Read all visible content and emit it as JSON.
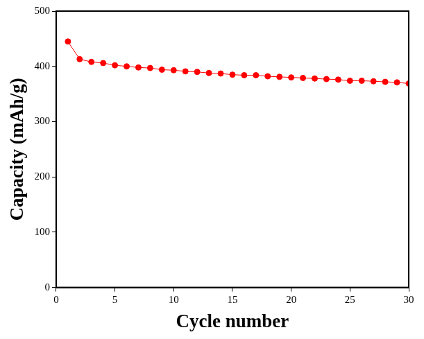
{
  "chart_data": {
    "type": "line",
    "x_label": "Cycle number",
    "y_label": "Capacity (mAh/g)",
    "x": [
      1,
      2,
      3,
      4,
      5,
      6,
      7,
      8,
      9,
      10,
      11,
      12,
      13,
      14,
      15,
      16,
      17,
      18,
      19,
      20,
      21,
      22,
      23,
      24,
      25,
      26,
      27,
      28,
      29,
      30
    ],
    "values": [
      445,
      413,
      408,
      406,
      402,
      400,
      398,
      397,
      394,
      393,
      391,
      390,
      388,
      387,
      385,
      384,
      384,
      382,
      381,
      380,
      379,
      378,
      377,
      376,
      374,
      374,
      373,
      372,
      371,
      369
    ],
    "color": "#ff0000",
    "marker": "circle",
    "line_style": "solid",
    "xlim": [
      0,
      30
    ],
    "xticks": [
      0,
      5,
      10,
      15,
      20,
      25,
      30
    ],
    "ylim": [
      0,
      500
    ],
    "yticks": [
      0,
      100,
      200,
      300,
      400,
      500
    ],
    "grid": false
  }
}
